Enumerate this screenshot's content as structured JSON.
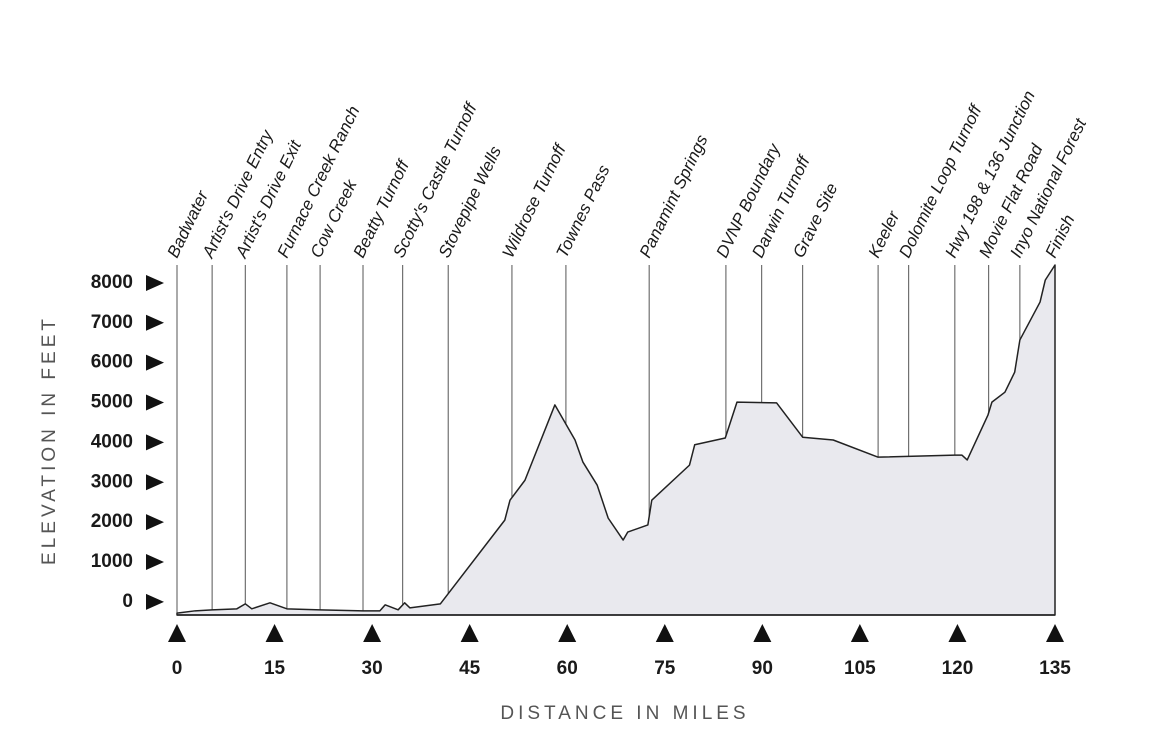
{
  "chart_data": {
    "type": "area",
    "xlabel": "DISTANCE IN MILES",
    "ylabel": "ELEVATION IN FEET",
    "x": [
      0,
      2.8,
      5.4,
      9.2,
      10.5,
      11.5,
      14.3,
      16.9,
      22,
      28.6,
      31.2,
      32,
      34,
      35,
      35.8,
      40.5,
      50.4,
      51.2,
      53.5,
      58.1,
      61.2,
      62.4,
      64.6,
      66.3,
      68.6,
      69.3,
      72.4,
      73,
      78.8,
      79.6,
      84.3,
      86.1,
      92.2,
      96.2,
      100.9,
      107.8,
      119.6,
      120.7,
      121.5,
      124.7,
      125.3,
      127.3,
      128.8,
      129.6,
      132.7,
      133.5,
      135
    ],
    "values": [
      -282,
      -225,
      -200,
      -175,
      -50,
      -175,
      -25,
      -175,
      -200,
      -225,
      -225,
      -75,
      -200,
      -25,
      -150,
      -50,
      2050,
      2550,
      3050,
      4940,
      4060,
      3510,
      2930,
      2100,
      1550,
      1750,
      1930,
      2550,
      3430,
      3940,
      4110,
      5010,
      4990,
      4130,
      4060,
      3630,
      3680,
      3680,
      3560,
      4690,
      5010,
      5260,
      5760,
      6570,
      7520,
      8070,
      8450
    ],
    "color": "#e9e9ee",
    "xlim": [
      0,
      135
    ],
    "ylim": [
      -330,
      8450
    ],
    "xticks": [
      0,
      15,
      30,
      45,
      60,
      75,
      90,
      105,
      120,
      135
    ],
    "yticks": [
      0,
      1000,
      2000,
      3000,
      4000,
      5000,
      6000,
      7000,
      8000
    ],
    "landmarks": [
      {
        "label": "Badwater",
        "x": 0
      },
      {
        "label": "Artist's Drive Entry",
        "x": 5.4
      },
      {
        "label": "Artist's Drive Exit",
        "x": 10.5
      },
      {
        "label": "Furnace Creek Ranch",
        "x": 16.9
      },
      {
        "label": "Cow Creek",
        "x": 22
      },
      {
        "label": "Beatty Turnoff",
        "x": 28.6
      },
      {
        "label": "Scotty's Castle Turnoff",
        "x": 34.7
      },
      {
        "label": "Stovepipe Wells",
        "x": 41.7
      },
      {
        "label": "Wildrose Turnoff",
        "x": 51.5
      },
      {
        "label": "Townes Pass",
        "x": 59.8
      },
      {
        "label": "Panamint Springs",
        "x": 72.6
      },
      {
        "label": "DVNP Boundary",
        "x": 84.4
      },
      {
        "label": "Darwin Turnoff",
        "x": 89.9
      },
      {
        "label": "Grave Site",
        "x": 96.2
      },
      {
        "label": "Keeler",
        "x": 107.8
      },
      {
        "label": "Dolomite Loop Turnoff",
        "x": 112.5
      },
      {
        "label": "Hwy 198 & 136 Junction",
        "x": 119.6
      },
      {
        "label": "Movie Flat Road",
        "x": 124.8
      },
      {
        "label": "Inyo National Forest",
        "x": 129.6
      },
      {
        "label": "Finish",
        "x": 135
      }
    ]
  }
}
